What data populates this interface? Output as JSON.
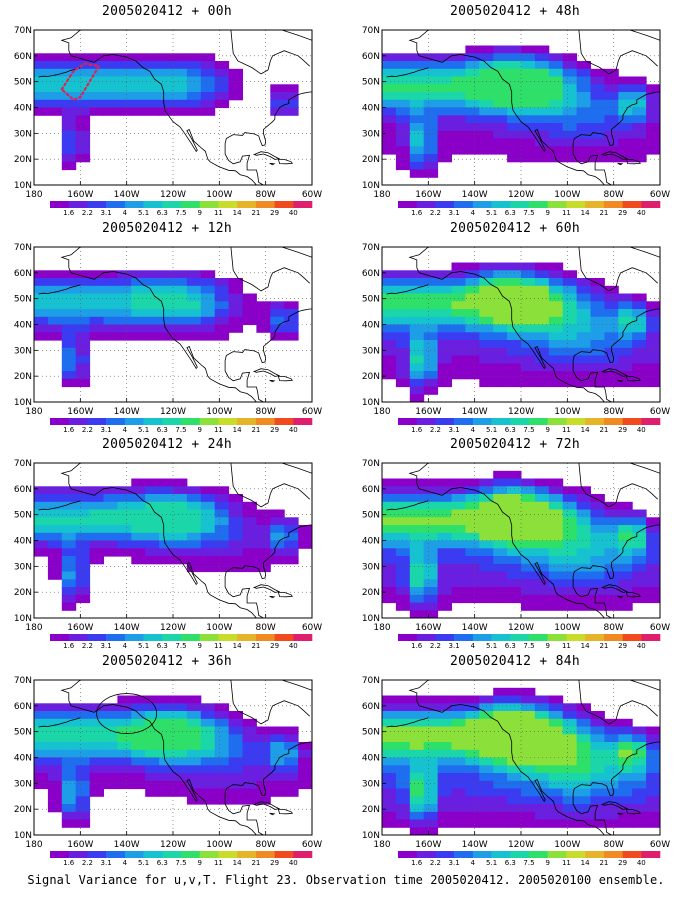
{
  "panels": [
    {
      "title": "2005020412 + 00h",
      "lead_hours": 0,
      "max_level": 6,
      "has_flight_track": true,
      "has_ellipse": false
    },
    {
      "title": "2005020412 + 48h",
      "lead_hours": 48,
      "max_level": 7,
      "has_flight_track": false,
      "has_ellipse": false
    },
    {
      "title": "2005020412 + 12h",
      "lead_hours": 12,
      "max_level": 6,
      "has_flight_track": false,
      "has_ellipse": false
    },
    {
      "title": "2005020412 + 60h",
      "lead_hours": 60,
      "max_level": 8,
      "has_flight_track": false,
      "has_ellipse": false
    },
    {
      "title": "2005020412 + 24h",
      "lead_hours": 24,
      "max_level": 6,
      "has_flight_track": false,
      "has_ellipse": false
    },
    {
      "title": "2005020412 + 72h",
      "lead_hours": 72,
      "max_level": 8,
      "has_flight_track": false,
      "has_ellipse": false
    },
    {
      "title": "2005020412 + 36h",
      "lead_hours": 36,
      "max_level": 7,
      "has_flight_track": false,
      "has_ellipse": true
    },
    {
      "title": "2005020412 + 84h",
      "lead_hours": 84,
      "max_level": 8,
      "has_flight_track": false,
      "has_ellipse": false
    }
  ],
  "lat_labels": [
    "70N",
    "60N",
    "50N",
    "40N",
    "30N",
    "20N",
    "10N"
  ],
  "lon_labels": [
    "180",
    "160W",
    "140W",
    "120W",
    "100W",
    "80W",
    "60W"
  ],
  "colorbar": {
    "colors": [
      "#8a00c8",
      "#6a1ee0",
      "#3b3bf2",
      "#1f6ef0",
      "#1e9ee6",
      "#17c2d0",
      "#1ad6a8",
      "#2ee06a",
      "#8be03a",
      "#c8dc2a",
      "#e6b428",
      "#f08a22",
      "#f04a1e",
      "#e01e6e"
    ],
    "labels": [
      "1.6",
      "2.2",
      "3.1",
      "4",
      "5.1",
      "6.3",
      "7.5",
      "9",
      "11",
      "14",
      "21",
      "29",
      "40"
    ]
  },
  "caption": "Signal Variance for u,v,T. Flight 23. Observation time 2005020412. 2005020100 ensemble."
}
